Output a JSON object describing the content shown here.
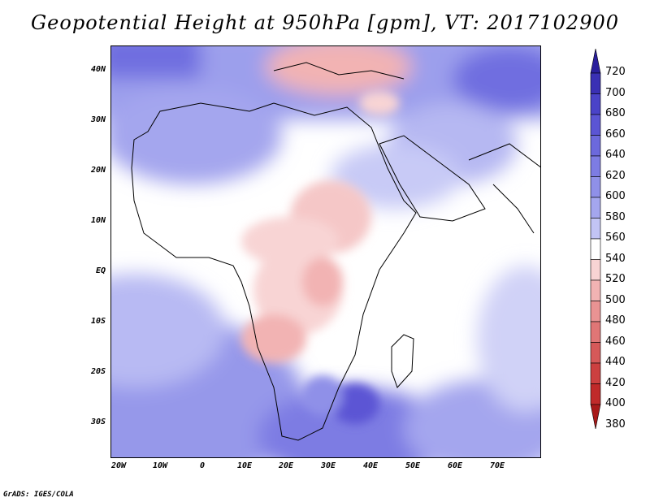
{
  "title": "Geopotential Height at 950hPa [gpm], VT: 2017102900",
  "credit": "GrADS: IGES/COLA",
  "y_ticks": [
    "40N",
    "30N",
    "20N",
    "10N",
    "EQ",
    "10S",
    "20S",
    "30S"
  ],
  "x_ticks": [
    "20W",
    "10W",
    "0",
    "10E",
    "20E",
    "30E",
    "40E",
    "50E",
    "60E",
    "70E"
  ],
  "colorbar": {
    "levels": [
      "720",
      "700",
      "680",
      "660",
      "640",
      "620",
      "600",
      "580",
      "560",
      "540",
      "520",
      "500",
      "480",
      "460",
      "440",
      "420",
      "400",
      "380"
    ],
    "colors": [
      "#2a1f9c",
      "#3a30b4",
      "#4a43c8",
      "#5b55d4",
      "#6c69dc",
      "#7d7ce3",
      "#8f90e8",
      "#a4a6ee",
      "#c2c4f5",
      "#ffffff",
      "#f8d4d4",
      "#f2b3b3",
      "#e99393",
      "#e07676",
      "#d65959",
      "#cc4040",
      "#c02a2a",
      "#a81a1a"
    ]
  }
}
